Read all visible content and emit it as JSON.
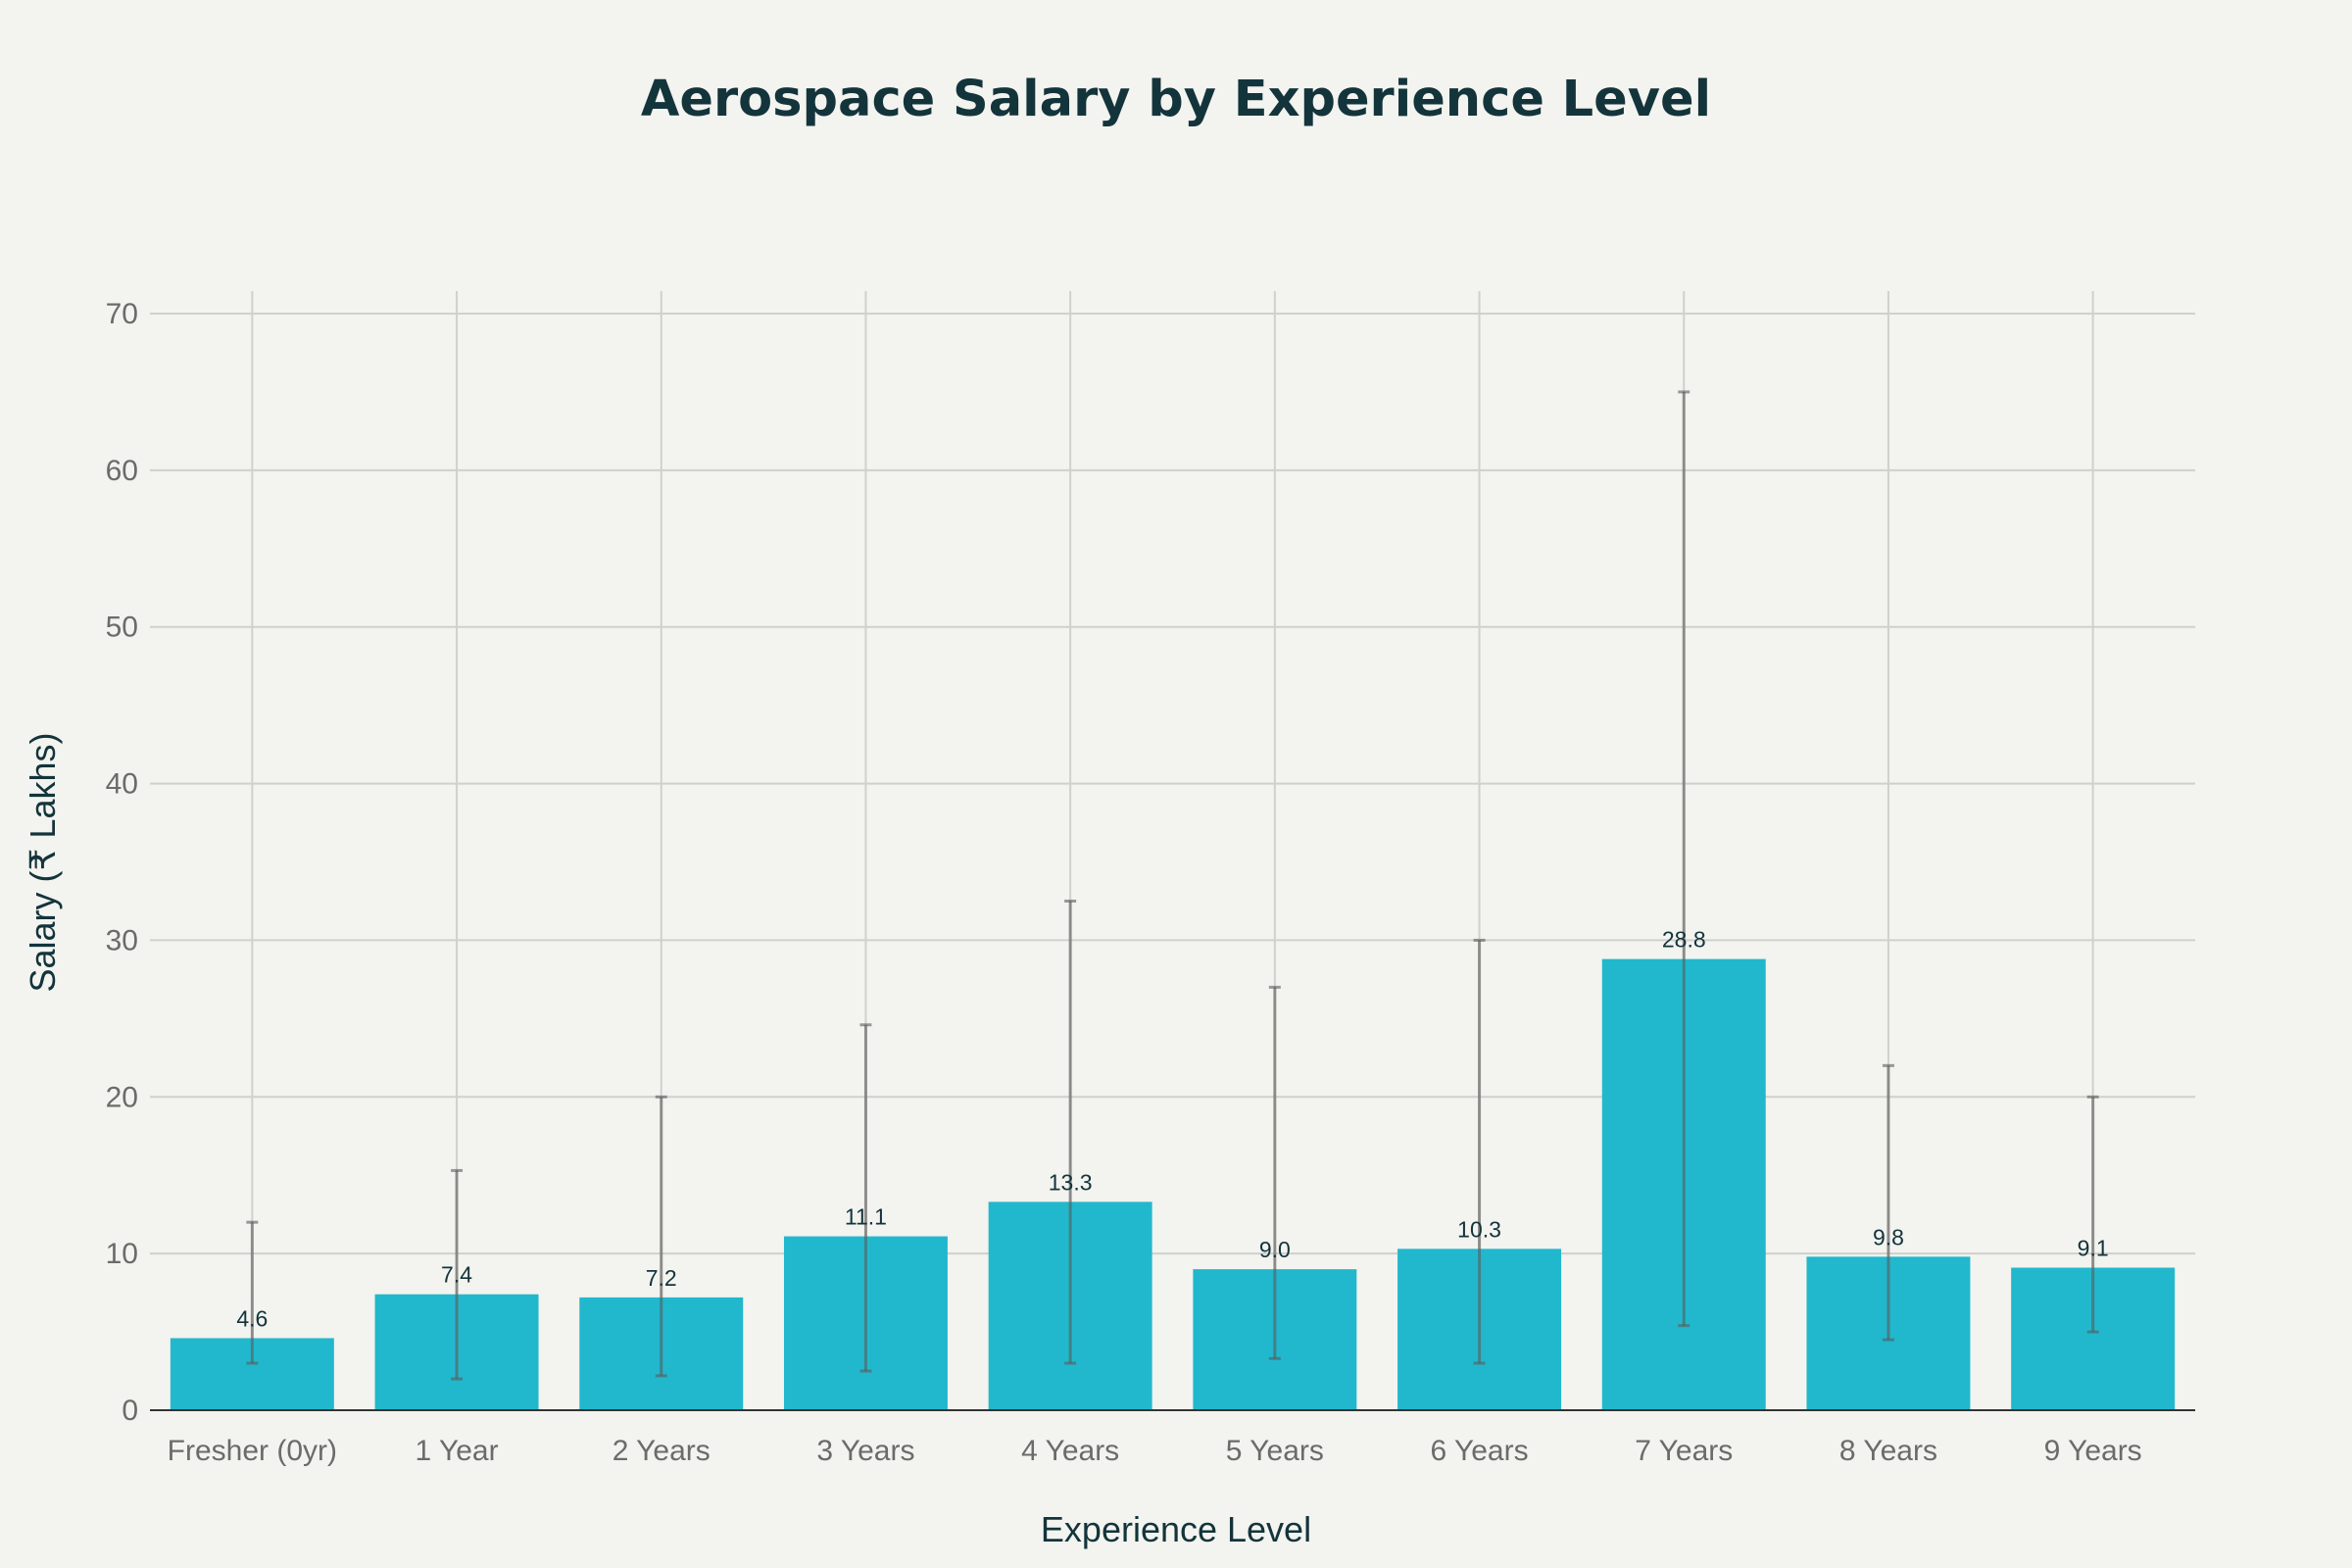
{
  "chart_data": {
    "type": "bar",
    "title": "Aerospace Salary by Experience Level",
    "xlabel": "Experience Level",
    "ylabel": "Salary (₹ Lakhs)",
    "ylim": [
      0,
      70
    ],
    "yticks": [
      0,
      10,
      20,
      30,
      40,
      50,
      60,
      70
    ],
    "grid": true,
    "categories": [
      "Fresher (0yr)",
      "1 Year",
      "2 Years",
      "3 Years",
      "4 Years",
      "5 Years",
      "6 Years",
      "7 Years",
      "8 Years",
      "9 Years"
    ],
    "values": [
      4.6,
      7.4,
      7.2,
      11.1,
      13.3,
      9.0,
      10.3,
      28.8,
      9.8,
      9.1
    ],
    "data_labels": [
      "4.6",
      "7.4",
      "7.2",
      "11.1",
      "13.3",
      "9.0",
      "10.3",
      "28.8",
      "9.8",
      "9.1"
    ],
    "error_low": [
      3.0,
      2.0,
      2.2,
      2.5,
      3.0,
      3.3,
      3.0,
      5.4,
      4.5,
      5.0
    ],
    "error_high": [
      12.0,
      15.3,
      20.0,
      24.6,
      32.5,
      27.0,
      30.0,
      65.0,
      22.0,
      20.0
    ],
    "colors": {
      "bar": "#21b8cd",
      "error_bar": "#5a5a5a",
      "background": "#f3f3ef",
      "grid": "#d0d0cc",
      "title": "#13343b"
    }
  }
}
